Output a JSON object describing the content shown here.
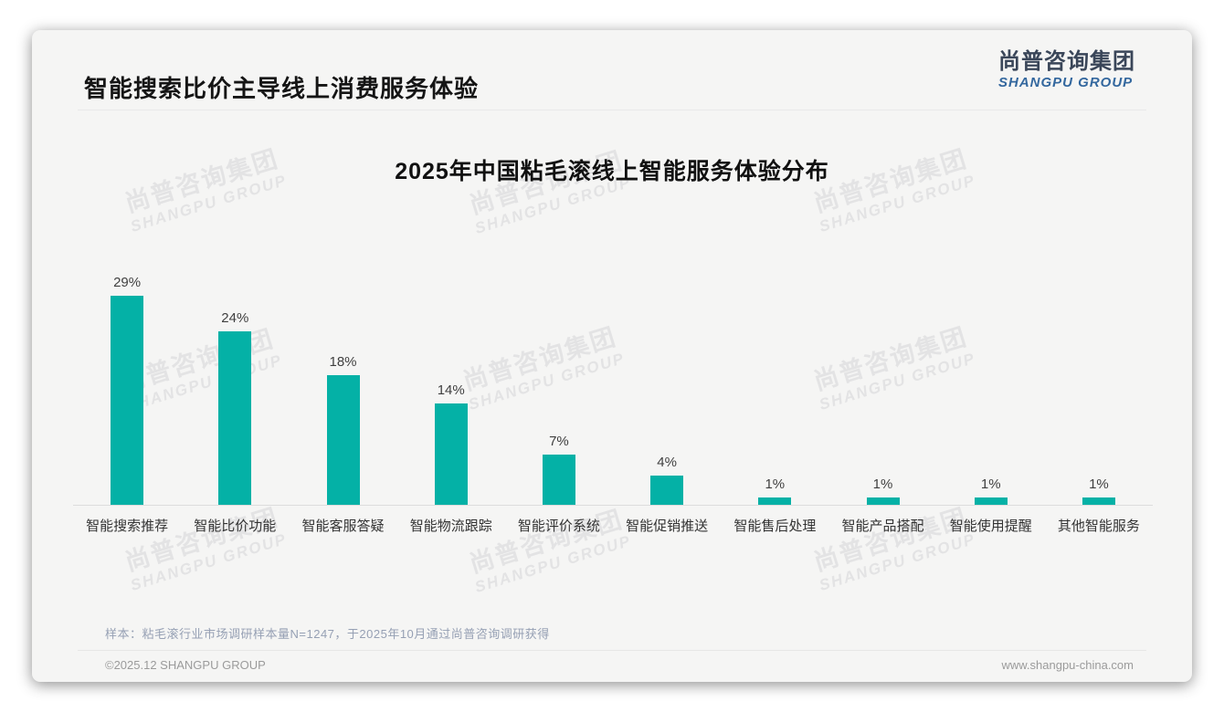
{
  "page": {
    "header_title": "智能搜索比价主导线上消费服务体验",
    "logo": {
      "cn": "尚普咨询集团",
      "en": "SHANGPU GROUP"
    },
    "watermark": {
      "line1": "尚普咨询集团",
      "line2": "SHANGPU GROUP"
    },
    "note": "样本：粘毛滚行业市场调研样本量N=1247，于2025年10月通过尚普咨询调研获得",
    "footer": {
      "left": "©2025.12 SHANGPU GROUP",
      "right": "www.shangpu-china.com"
    },
    "colors": {
      "bar": "#04b1a6",
      "logo_cn": "#3a4659",
      "logo_en": "#33679e",
      "card_bg": "#f5f5f4"
    }
  },
  "chart_data": {
    "type": "bar",
    "title": "2025年中国粘毛滚线上智能服务体验分布",
    "categories": [
      "智能搜索推荐",
      "智能比价功能",
      "智能客服答疑",
      "智能物流跟踪",
      "智能评价系统",
      "智能促销推送",
      "智能售后处理",
      "智能产品搭配",
      "智能使用提醒",
      "其他智能服务"
    ],
    "values": [
      29,
      24,
      18,
      14,
      7,
      4,
      1,
      1,
      1,
      1
    ],
    "labels": [
      "29%",
      "24%",
      "18%",
      "14%",
      "7%",
      "4%",
      "1%",
      "1%",
      "1%",
      "1%"
    ],
    "xlabel": "",
    "ylabel": "",
    "ylim": [
      0,
      32
    ],
    "grid": false,
    "legend": false,
    "bar_color": "#04b1a6"
  }
}
